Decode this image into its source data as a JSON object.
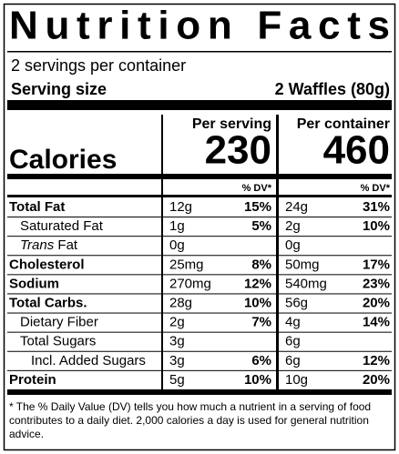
{
  "title": "Nutrition Facts",
  "servings": "2 servings per container",
  "serving_size": {
    "label": "Serving size",
    "value": "2 Waffles (80g)"
  },
  "columns": [
    "Per serving",
    "Per container"
  ],
  "calories": {
    "label": "Calories",
    "values": [
      230,
      460
    ]
  },
  "dv_header": "% DV*",
  "rows": [
    {
      "name": "Total Fat",
      "bold": true,
      "indent": 0,
      "values": [
        [
          "12g",
          "15%"
        ],
        [
          "24g",
          "31%"
        ]
      ]
    },
    {
      "name": "Saturated Fat",
      "bold": false,
      "indent": 1,
      "values": [
        [
          "1g",
          "5%"
        ],
        [
          "2g",
          "10%"
        ]
      ]
    },
    {
      "name_italic": "Trans",
      "name": "Fat",
      "bold": false,
      "indent": 1,
      "values": [
        [
          "0g",
          null
        ],
        [
          "0g",
          null
        ]
      ]
    },
    {
      "name": "Cholesterol",
      "bold": true,
      "indent": 0,
      "values": [
        [
          "25mg",
          "8%"
        ],
        [
          "50mg",
          "17%"
        ]
      ]
    },
    {
      "name": "Sodium",
      "bold": true,
      "indent": 0,
      "values": [
        [
          "270mg",
          "12%"
        ],
        [
          "540mg",
          "23%"
        ]
      ]
    },
    {
      "name": "Total Carbs.",
      "bold": true,
      "indent": 0,
      "values": [
        [
          "28g",
          "10%"
        ],
        [
          "56g",
          "20%"
        ]
      ]
    },
    {
      "name": "Dietary Fiber",
      "bold": false,
      "indent": 1,
      "values": [
        [
          "2g",
          "7%"
        ],
        [
          "4g",
          "14%"
        ]
      ]
    },
    {
      "name": "Total Sugars",
      "bold": false,
      "indent": 1,
      "values": [
        [
          "3g",
          null
        ],
        [
          "6g",
          null
        ]
      ]
    },
    {
      "name": "Incl. Added Sugars",
      "bold": false,
      "indent": 2,
      "values": [
        [
          "3g",
          "6%"
        ],
        [
          "6g",
          "12%"
        ]
      ]
    },
    {
      "name": "Protein",
      "bold": true,
      "indent": 0,
      "values": [
        [
          "5g",
          "10%"
        ],
        [
          "10g",
          "20%"
        ]
      ]
    }
  ],
  "footnote": "* The % Daily Value (DV) tells you how much a nutrient in a serving of food contributes to a daily diet. 2,000 calories a day is used for general nutrition advice."
}
